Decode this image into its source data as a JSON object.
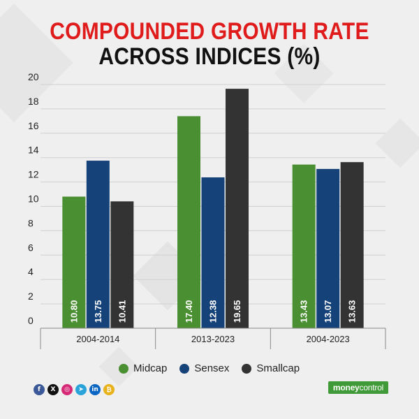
{
  "title": {
    "line1": "COMPOUNDED GROWTH RATE",
    "line2": "ACROSS INDICES (%)"
  },
  "chart_data": {
    "type": "bar",
    "categories": [
      "2004-2014",
      "2013-2023",
      "2004-2023"
    ],
    "series": [
      {
        "name": "Midcap",
        "color": "#4a8f32",
        "values": [
          10.8,
          17.4,
          13.43
        ]
      },
      {
        "name": "Sensex",
        "color": "#16427a",
        "values": [
          13.75,
          12.38,
          13.07
        ]
      },
      {
        "name": "Smallcap",
        "color": "#333333",
        "values": [
          10.41,
          19.65,
          13.63
        ]
      }
    ],
    "data_labels": [
      [
        "10.80",
        "13.75",
        "10.41"
      ],
      [
        "17.40",
        "12.38",
        "19.65"
      ],
      [
        "13.43",
        "13.07",
        "13.63"
      ]
    ],
    "ylim": [
      0,
      20
    ],
    "yticks": [
      "0",
      "2",
      "4",
      "6",
      "8",
      "10",
      "12",
      "14",
      "16",
      "18",
      "20"
    ],
    "grid": true,
    "legend_position": "bottom"
  },
  "social": {
    "icons": [
      {
        "name": "facebook-icon",
        "glyph": "f",
        "color": "#3b5998"
      },
      {
        "name": "x-icon",
        "glyph": "X",
        "color": "#111111"
      },
      {
        "name": "instagram-icon",
        "glyph": "◎",
        "color": "#d62976"
      },
      {
        "name": "telegram-icon",
        "glyph": "➤",
        "color": "#2aa3d9"
      },
      {
        "name": "linkedin-icon",
        "glyph": "in",
        "color": "#0a66c2"
      },
      {
        "name": "coin-icon",
        "glyph": "₿",
        "color": "#e8b21c"
      }
    ]
  },
  "brand": {
    "logo_text_bold": "money",
    "logo_text_light": "control"
  }
}
